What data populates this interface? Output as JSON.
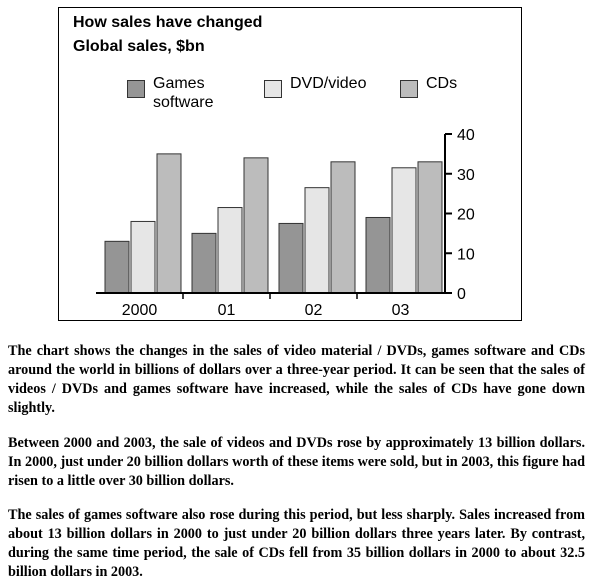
{
  "colors": {
    "games": "#959595",
    "dvd": "#e6e6e6",
    "cds": "#bcbcbc",
    "text": "#000000"
  },
  "chart_data": {
    "type": "bar",
    "title": "How sales have changed",
    "subtitle": "Global sales, $bn",
    "categories": [
      "2000",
      "01",
      "02",
      "03"
    ],
    "series": [
      {
        "name": "Games software",
        "values": [
          13,
          15,
          17.5,
          19
        ]
      },
      {
        "name": "DVD/video",
        "values": [
          18,
          21.5,
          26.5,
          31.5
        ]
      },
      {
        "name": "CDs",
        "values": [
          35,
          34,
          33,
          33
        ]
      }
    ],
    "ylim": [
      0,
      40
    ],
    "yticks": [
      "0",
      "10",
      "20",
      "30",
      "40"
    ],
    "y_axis_side": "right",
    "legend_position": "top",
    "grid": false,
    "xlabel": "",
    "ylabel": ""
  },
  "paragraphs": [
    "The chart shows the changes in the sales of video material / DVDs, games software and CDs around the world in billions of dollars over a three-year period. It can be seen that the sales of videos / DVDs and games software have increased, while the sales of CDs have gone down slightly.",
    "Between 2000 and 2003, the sale of videos and DVDs rose by approximately 13 billion dollars. In 2000, just under 20 billion dollars worth of these items were sold, but in 2003, this figure had risen to a little over 30 billion dollars.",
    "The sales of games software also rose during this period, but less sharply. Sales increased from about 13 billion dollars in 2000 to just under 20 billion dollars three years later. By contrast, during the same time period, the sale of CDs fell from 35 billion dollars in 2000 to about 32.5 billion dollars in 2003."
  ]
}
